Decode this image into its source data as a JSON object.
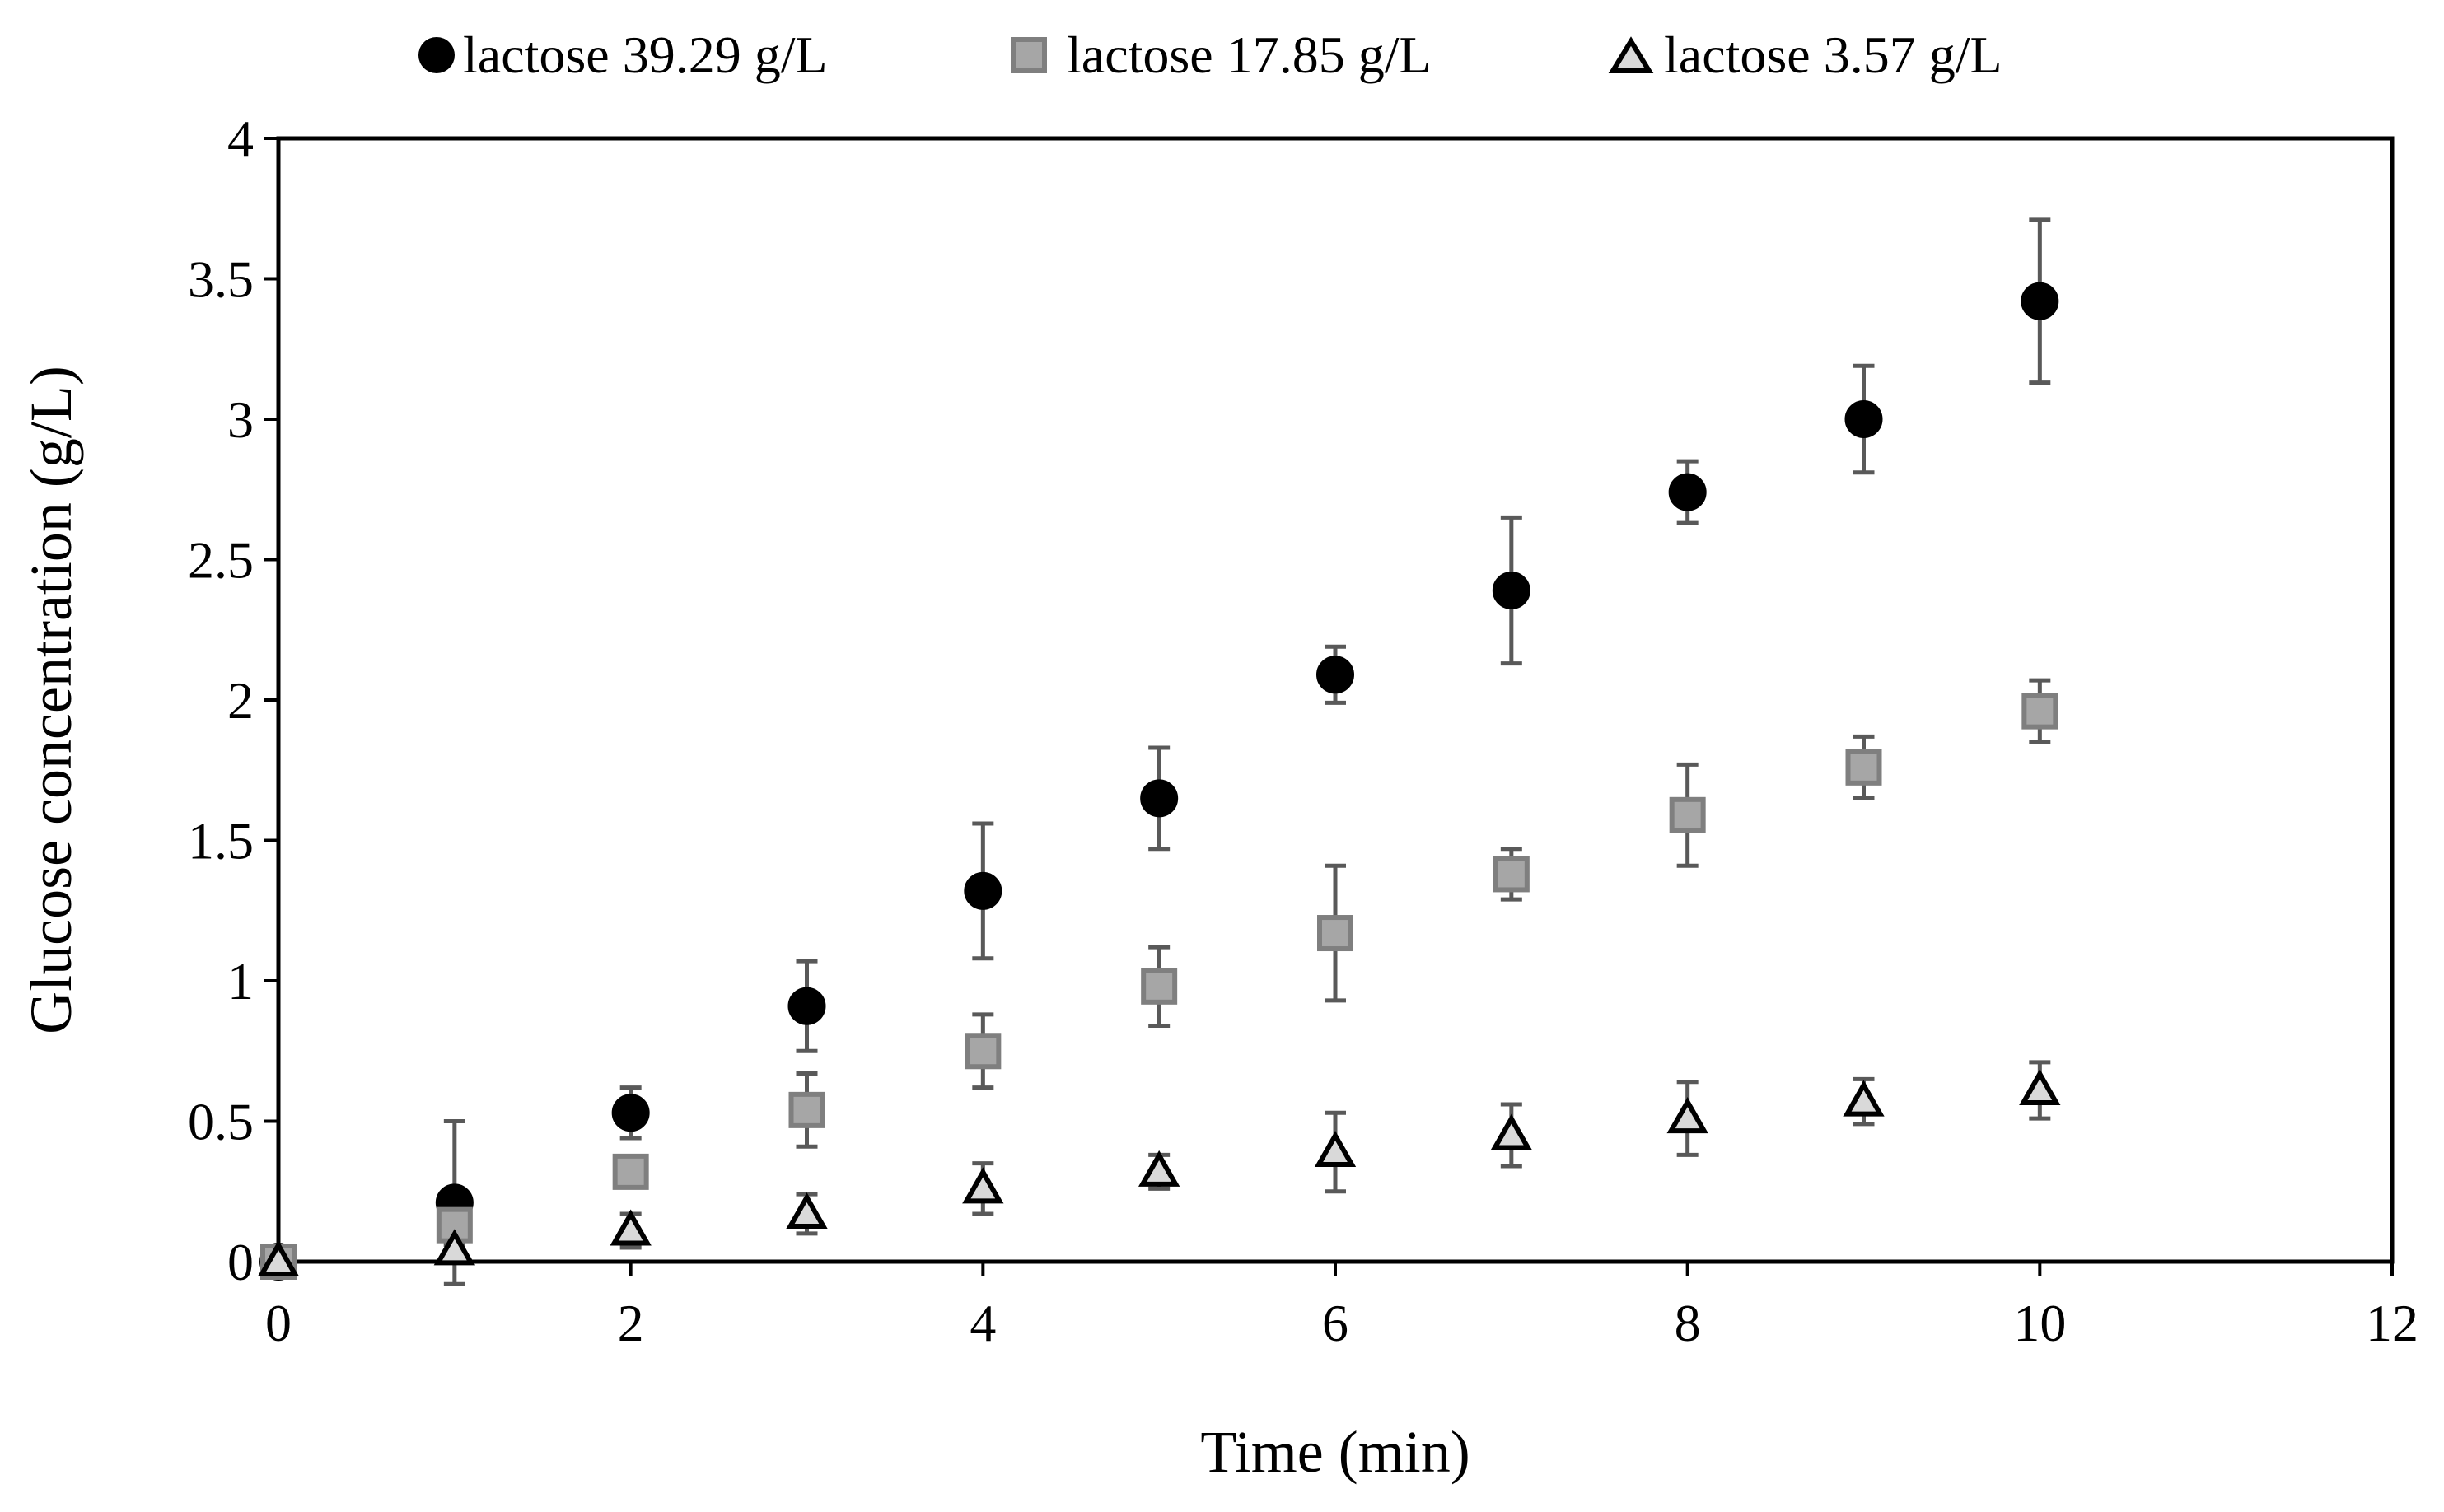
{
  "chart_data": {
    "type": "scatter",
    "title": "",
    "xlabel": "Time (min)",
    "ylabel": "Glucose concentration (g/L)",
    "xlim": [
      0,
      12
    ],
    "ylim": [
      0,
      4
    ],
    "xticks": [
      0,
      2,
      4,
      6,
      8,
      10,
      12
    ],
    "xtick_labels": [
      "0",
      "2",
      "4",
      "6",
      "8",
      "10",
      "12"
    ],
    "yticks": [
      0,
      0.5,
      1,
      1.5,
      2,
      2.5,
      3,
      3.5,
      4
    ],
    "ytick_labels": [
      "0",
      "0.5",
      "1",
      "1.5",
      "2",
      "2.5",
      "3",
      "3.5",
      "4"
    ],
    "grid": false,
    "legend_position": "top",
    "series": [
      {
        "name": "lactose 39.29 g/L",
        "marker": "circle",
        "fill": "#000000",
        "stroke": "#000000",
        "x": [
          0,
          1,
          2,
          3,
          4,
          5,
          6,
          7,
          8,
          9,
          10
        ],
        "y": [
          0,
          0.21,
          0.53,
          0.91,
          1.32,
          1.65,
          2.09,
          2.39,
          2.74,
          3.0,
          3.42
        ],
        "err": [
          0,
          0.29,
          0.09,
          0.16,
          0.24,
          0.18,
          0.1,
          0.26,
          0.11,
          0.19,
          0.29
        ]
      },
      {
        "name": "lactose 17.85 g/L",
        "marker": "square",
        "fill": "#a6a6a6",
        "stroke": "#7f7f7f",
        "x": [
          0,
          1,
          2,
          3,
          4,
          5,
          6,
          7,
          8,
          9,
          10
        ],
        "y": [
          0,
          0.13,
          0.32,
          0.54,
          0.75,
          0.98,
          1.17,
          1.38,
          1.59,
          1.76,
          1.96
        ],
        "err": [
          0,
          0.07,
          0.05,
          0.13,
          0.13,
          0.14,
          0.24,
          0.09,
          0.18,
          0.11,
          0.11
        ]
      },
      {
        "name": "lactose 3.57 g/L",
        "marker": "triangle",
        "fill": "#d9d9d9",
        "stroke": "#000000",
        "x": [
          0,
          1,
          2,
          3,
          4,
          5,
          6,
          7,
          8,
          9,
          10
        ],
        "y": [
          0,
          0.04,
          0.11,
          0.17,
          0.26,
          0.32,
          0.39,
          0.45,
          0.51,
          0.57,
          0.61
        ],
        "err": [
          0,
          0.02,
          0.06,
          0.07,
          0.09,
          0.06,
          0.14,
          0.11,
          0.13,
          0.08,
          0.1
        ]
      }
    ],
    "error_bar_color": "#595959",
    "axis_color": "#000000"
  }
}
